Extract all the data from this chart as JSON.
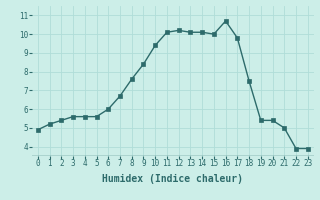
{
  "x": [
    0,
    1,
    2,
    3,
    4,
    5,
    6,
    7,
    8,
    9,
    10,
    11,
    12,
    13,
    14,
    15,
    16,
    17,
    18,
    19,
    20,
    21,
    22,
    23
  ],
  "y": [
    4.9,
    5.2,
    5.4,
    5.6,
    5.6,
    5.6,
    6.0,
    6.7,
    7.6,
    8.4,
    9.4,
    10.1,
    10.2,
    10.1,
    10.1,
    10.0,
    10.7,
    9.8,
    7.5,
    5.4,
    5.4,
    5.0,
    3.9,
    3.9
  ],
  "line_color": "#2d6b6b",
  "marker": "s",
  "markersize": 2.2,
  "linewidth": 1.0,
  "bg_color": "#cceee8",
  "grid_color": "#b0ddd8",
  "xlabel": "Humidex (Indice chaleur)",
  "xlabel_fontsize": 7,
  "xlim": [
    -0.5,
    23.5
  ],
  "ylim": [
    3.5,
    11.5
  ],
  "yticks": [
    4,
    5,
    6,
    7,
    8,
    9,
    10,
    11
  ],
  "xticks": [
    0,
    1,
    2,
    3,
    4,
    5,
    6,
    7,
    8,
    9,
    10,
    11,
    12,
    13,
    14,
    15,
    16,
    17,
    18,
    19,
    20,
    21,
    22,
    23
  ],
  "tick_fontsize": 5.5,
  "axis_color": "#2d6b6b"
}
